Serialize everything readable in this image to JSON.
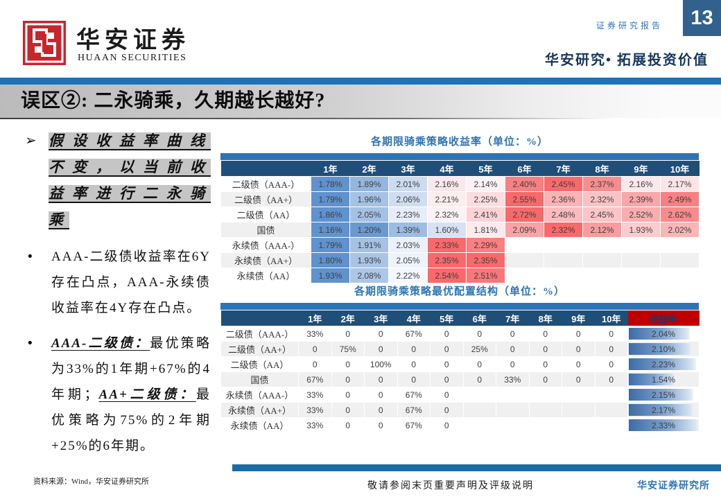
{
  "header": {
    "logo_zh": "华安证券",
    "logo_en": "HUAAN SECURITIES",
    "report_type": "证券研究报告",
    "page_number": "13",
    "slogan": "华安研究• 拓展投资价值"
  },
  "title": "误区②: 二永骑乘，久期越长越好?",
  "sidebar": {
    "lead_marker": "➢",
    "lead_text": "假设收益率曲线不变，以当前收益率进行二永骑乘",
    "bullet_marker": "•",
    "bullets": [
      {
        "segments": [
          {
            "t": "AAA-二级债收益率在6Y存在凸点，AAA-永续债收益率在4Y存在凸点。",
            "em": false
          }
        ]
      },
      {
        "segments": [
          {
            "t": "AAA-二级债：",
            "em": true
          },
          {
            "t": "最优策略为33%的1年期+67%的4年期；",
            "em": false
          },
          {
            "t": "AA+二级债：",
            "em": true
          },
          {
            "t": "最优策略为75%的2年期+25%的6年期。",
            "em": false
          }
        ]
      }
    ]
  },
  "chart_data": [
    {
      "type": "heatmap",
      "title": "各期限骑乘策略收益率（单位：%）",
      "columns": [
        "1年",
        "2年",
        "3年",
        "4年",
        "5年",
        "6年",
        "7年",
        "8年",
        "9年",
        "10年"
      ],
      "rows": [
        {
          "label": "二级债（AAA-）",
          "values": [
            1.78,
            1.89,
            2.01,
            2.16,
            2.14,
            2.4,
            2.45,
            2.37,
            2.16,
            2.17
          ]
        },
        {
          "label": "二级债（AA+）",
          "values": [
            1.79,
            1.96,
            2.06,
            2.21,
            2.25,
            2.55,
            2.36,
            2.32,
            2.39,
            2.49
          ]
        },
        {
          "label": "二级债（AA）",
          "values": [
            1.86,
            2.05,
            2.23,
            2.32,
            2.41,
            2.72,
            2.48,
            2.45,
            2.52,
            2.62
          ]
        },
        {
          "label": "国债",
          "values": [
            1.16,
            1.2,
            1.39,
            1.6,
            1.81,
            2.09,
            2.32,
            2.12,
            1.93,
            2.02
          ]
        },
        {
          "label": "永续债（AAA-）",
          "values": [
            1.79,
            1.91,
            2.03,
            2.33,
            2.29
          ]
        },
        {
          "label": "永续债（AA+）",
          "values": [
            1.8,
            1.93,
            2.05,
            2.35,
            2.35
          ]
        },
        {
          "label": "永续债（AA）",
          "values": [
            1.93,
            2.08,
            2.22,
            2.54,
            2.51
          ]
        }
      ],
      "value_suffix": "%",
      "colorscale": {
        "low": "#5F92CE",
        "mid": "#FCFCFF",
        "high": "#F8696B",
        "scale_per": "row"
      }
    },
    {
      "type": "table",
      "title": "各期限骑乘策略最优配置结构（单位：%）",
      "columns": [
        "1年",
        "2年",
        "3年",
        "4年",
        "5年",
        "6年",
        "7年",
        "8年",
        "9年",
        "10年"
      ],
      "yield_label": "收益率",
      "rows": [
        {
          "label": "二级债（AAA-）",
          "values": [
            "33%",
            "0",
            "0",
            "67%",
            "0",
            "0",
            "0",
            "0",
            "0",
            "0"
          ],
          "yield": "2.04%"
        },
        {
          "label": "二级债（AA+）",
          "values": [
            "0",
            "75%",
            "0",
            "0",
            "0",
            "25%",
            "0",
            "0",
            "0",
            "0"
          ],
          "yield": "2.10%"
        },
        {
          "label": "二级债（AA）",
          "values": [
            "0",
            "0",
            "100%",
            "0",
            "0",
            "0",
            "0",
            "0",
            "0",
            "0"
          ],
          "yield": "2.23%"
        },
        {
          "label": "国债",
          "values": [
            "67%",
            "0",
            "0",
            "0",
            "0",
            "0",
            "33%",
            "0",
            "0",
            "0"
          ],
          "yield": "1.54%"
        },
        {
          "label": "永续债（AAA-）",
          "values": [
            "33%",
            "0",
            "0",
            "67%",
            "0"
          ],
          "yield": "2.15%"
        },
        {
          "label": "永续债（AA+）",
          "values": [
            "33%",
            "0",
            "0",
            "67%",
            "0"
          ],
          "yield": "2.17%"
        },
        {
          "label": "永续债（AA）",
          "values": [
            "33%",
            "0",
            "0",
            "67%",
            "0"
          ],
          "yield": "2.33%"
        }
      ]
    }
  ],
  "footer": {
    "source": "资料来源：Wind，华安证券研究所",
    "disclaimer": "敬请参阅末页重要声明及评级说明",
    "institute": "华安证券研究所"
  },
  "colors": {
    "navy_header": "#1F4E79",
    "accent_blue": "#2E74B5",
    "strip_blue": "#1E72B7",
    "yield_header_red": "#C00000",
    "heat_low": "#5F92CE",
    "heat_mid": "#FCFCFF",
    "heat_high": "#F8696B",
    "stripe_gray": "#F0F0F0",
    "page_box_blue": "#31618C"
  }
}
